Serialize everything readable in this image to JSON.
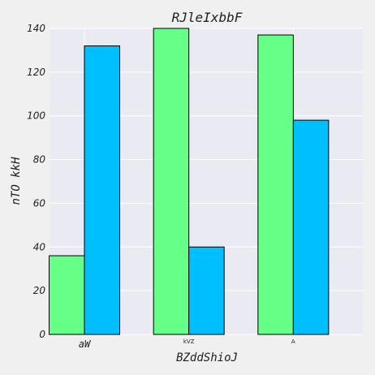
{
  "chart_data": {
    "type": "bar",
    "title": "RJleIxbbF",
    "xlabel": "BZddShioJ",
    "ylabel": "nTO  kkH",
    "categories": [
      "aW",
      "kVZ",
      "A"
    ],
    "category_label_sizes": [
      "normal",
      "small",
      "small"
    ],
    "series": [
      {
        "color": "#66ff88",
        "values": [
          36,
          140,
          137
        ]
      },
      {
        "color": "#00bfff",
        "values": [
          132,
          40,
          98
        ]
      }
    ],
    "ylim": [
      0,
      140
    ],
    "yticks": [
      0,
      20,
      40,
      60,
      80,
      100,
      120,
      140
    ],
    "grid": true,
    "plot_background": "#eaeaf2",
    "page_background": "#f0f0f0",
    "bar_edge_color": "#000000"
  }
}
